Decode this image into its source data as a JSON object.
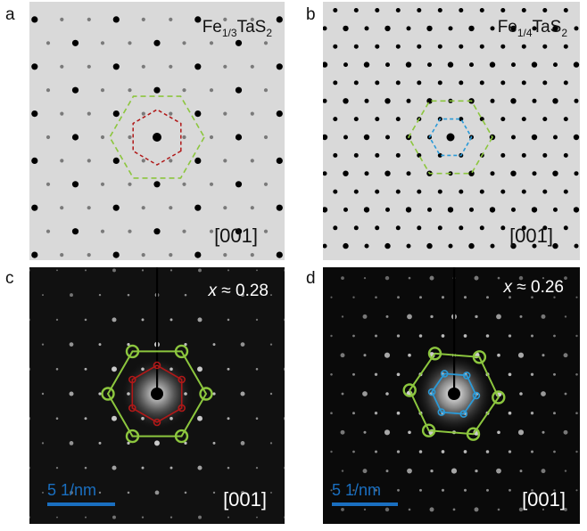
{
  "labels": {
    "a": "a",
    "b": "b",
    "c": "c",
    "d": "d"
  },
  "panel_a": {
    "formula_pre": "Fe",
    "formula_sub": "1/3",
    "formula_post": "TaS",
    "formula_sub2": "2",
    "zone_axis": "[001]"
  },
  "panel_b": {
    "formula_pre": "Fe",
    "formula_sub": "1/4",
    "formula_post": "TaS",
    "formula_sub2": "2",
    "zone_axis": "[001]"
  },
  "panel_c": {
    "x_var": "x",
    "x_rel": " ≈ 0.28",
    "zone_axis": "[001]",
    "scale_text": "5 1/nm"
  },
  "panel_d": {
    "x_var": "x",
    "x_rel": " ≈ 0.26",
    "zone_axis": "[001]",
    "scale_text": "5 1/nm"
  },
  "colors": {
    "superlattice_a": "#b01818",
    "superlattice_b": "#2a9ad8",
    "fundamental": "#8cc63e",
    "sim_bg": "#d9d9d9",
    "scale": "#1a6fc0"
  }
}
